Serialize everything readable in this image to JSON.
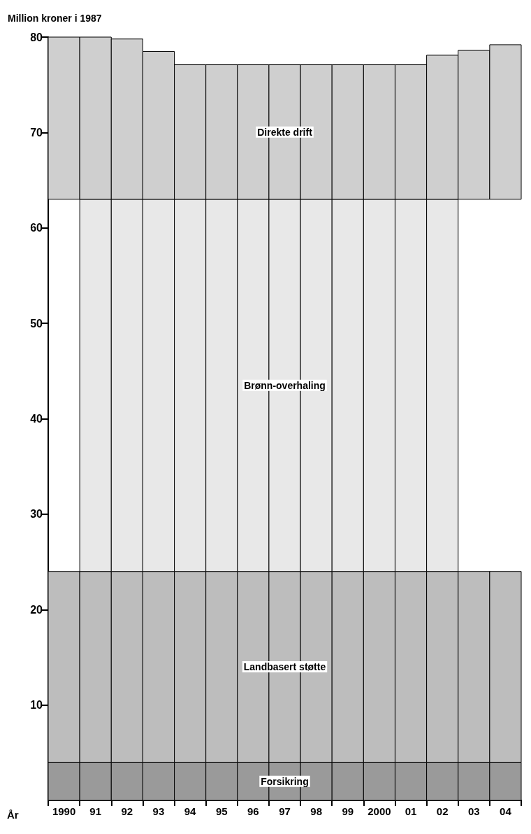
{
  "chart_data": {
    "type": "bar",
    "ylabel": "Million kroner i 1987",
    "xlabel": "År",
    "categories": [
      "1990",
      "91",
      "92",
      "93",
      "94",
      "95",
      "96",
      "97",
      "98",
      "99",
      "2000",
      "01",
      "02",
      "03",
      "04"
    ],
    "series": [
      {
        "name": "Forsikring",
        "color": "#9a9a9a",
        "base": [
          0,
          0,
          0,
          0,
          0,
          0,
          0,
          0,
          0,
          0,
          0,
          0,
          0,
          0,
          0
        ],
        "values": [
          4,
          4,
          4,
          4,
          4,
          4,
          4,
          4,
          4,
          4,
          4,
          4,
          4,
          4,
          4
        ]
      },
      {
        "name": "Landbasert støtte",
        "color": "#bdbdbd",
        "base": [
          4,
          4,
          4,
          4,
          4,
          4,
          4,
          4,
          4,
          4,
          4,
          4,
          4,
          4,
          4
        ],
        "values": [
          20,
          20,
          20,
          20,
          20,
          20,
          20,
          20,
          20,
          20,
          20,
          20,
          20,
          20,
          20
        ]
      },
      {
        "name": "Brønn-overhaling",
        "color": "#e8e8e8",
        "base": [
          null,
          24,
          24,
          24,
          24,
          24,
          24,
          24,
          24,
          24,
          24,
          24,
          24,
          null,
          null
        ],
        "values": [
          null,
          39,
          39,
          39,
          39,
          39,
          39,
          39,
          39,
          39,
          39,
          39,
          39,
          null,
          null
        ]
      },
      {
        "name": "Direkte drift",
        "color": "#cfcfcf",
        "base": [
          63,
          63,
          63,
          63,
          63,
          63,
          63,
          63,
          63,
          63,
          63,
          63,
          63,
          63,
          63
        ],
        "values": [
          17,
          17,
          16.8,
          15.5,
          14.1,
          14.1,
          14.1,
          14.1,
          14.1,
          14.1,
          14.1,
          14.1,
          15.1,
          15.6,
          16.2
        ]
      }
    ],
    "ylim": [
      0,
      80
    ],
    "yticks": [
      10,
      20,
      30,
      40,
      50,
      60,
      70,
      80
    ],
    "grid": false,
    "legend": false
  }
}
